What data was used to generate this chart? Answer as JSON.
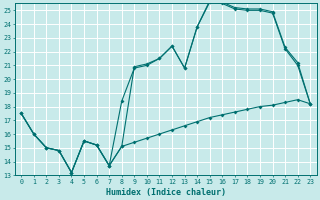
{
  "xlabel": "Humidex (Indice chaleur)",
  "bg_color": "#c8eaea",
  "grid_color": "#ffffff",
  "line_color": "#007070",
  "xlim": [
    -0.5,
    23.5
  ],
  "ylim": [
    13,
    25.5
  ],
  "yticks": [
    13,
    14,
    15,
    16,
    17,
    18,
    19,
    20,
    21,
    22,
    23,
    24,
    25
  ],
  "xticks": [
    0,
    1,
    2,
    3,
    4,
    5,
    6,
    7,
    8,
    9,
    10,
    11,
    12,
    13,
    14,
    15,
    16,
    17,
    18,
    19,
    20,
    21,
    22,
    23
  ],
  "line_bottom_x": [
    0,
    1,
    2,
    3,
    4,
    5,
    6,
    7,
    8,
    9,
    10,
    11,
    12,
    13,
    14,
    15,
    16,
    17,
    18,
    19,
    20,
    21,
    22,
    23
  ],
  "line_bottom_y": [
    17.5,
    16.0,
    15.0,
    14.8,
    13.2,
    15.5,
    15.2,
    13.7,
    15.1,
    15.4,
    15.7,
    16.0,
    16.3,
    16.6,
    16.9,
    17.2,
    17.4,
    17.6,
    17.8,
    18.0,
    18.1,
    18.3,
    18.5,
    18.2
  ],
  "line_mid_x": [
    0,
    1,
    2,
    3,
    4,
    5,
    6,
    7,
    8,
    9,
    10,
    11,
    12,
    13,
    14,
    15,
    16,
    17,
    18,
    19,
    20,
    21,
    22,
    23
  ],
  "line_mid_y": [
    17.5,
    16.0,
    15.0,
    14.8,
    13.2,
    15.5,
    15.2,
    13.7,
    18.4,
    20.8,
    21.0,
    21.5,
    22.4,
    20.8,
    23.8,
    25.6,
    25.5,
    25.1,
    25.0,
    25.0,
    24.8,
    22.2,
    21.0,
    18.2
  ],
  "line_top_x": [
    0,
    1,
    2,
    3,
    4,
    5,
    6,
    7,
    8,
    9,
    10,
    11,
    12,
    13,
    14,
    15,
    16,
    17,
    18,
    19,
    20,
    21,
    22,
    23
  ],
  "line_top_y": [
    17.5,
    16.0,
    15.0,
    14.8,
    13.2,
    15.5,
    15.2,
    13.7,
    15.1,
    20.9,
    21.1,
    21.5,
    22.4,
    20.8,
    23.8,
    25.7,
    25.6,
    25.2,
    25.1,
    25.1,
    24.9,
    22.3,
    21.2,
    18.2
  ]
}
